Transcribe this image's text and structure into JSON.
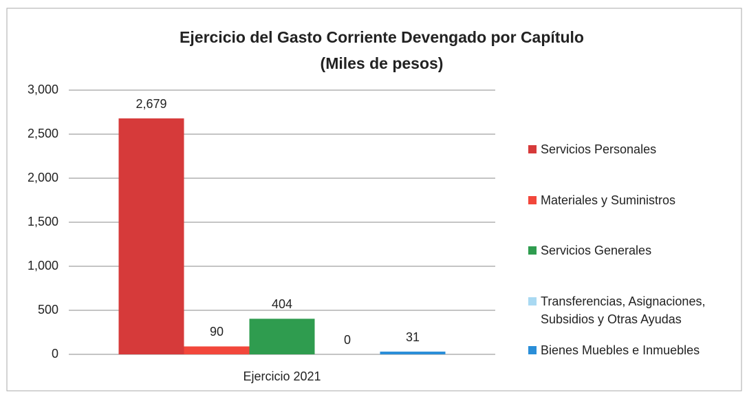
{
  "chart_data": {
    "type": "bar",
    "title": "Ejercicio del Gasto Corriente Devengado por Capítulo",
    "subtitle": "(Miles de pesos)",
    "categories": [
      "Ejercicio 2021"
    ],
    "series": [
      {
        "name": "Servicios Personales",
        "color": "#d63a3a",
        "values": [
          2679
        ],
        "value_labels": [
          "2,679"
        ]
      },
      {
        "name": "Materiales y Suministros",
        "color": "#f2473b",
        "values": [
          90
        ]
      },
      {
        "name": "Servicios Generales",
        "color": "#2f9c4f",
        "values": [
          404
        ]
      },
      {
        "name": "Transferencias, Asignaciones, Subsidios y Otras Ayudas",
        "color": "#a9d9f2",
        "values": [
          0
        ]
      },
      {
        "name": "Bienes Muebles e Inmuebles",
        "color": "#2a8ed8",
        "values": [
          31
        ]
      }
    ],
    "ylim": [
      0,
      3000
    ],
    "yticks": [
      0,
      500,
      {
        "value": 1000,
        "label": "1,000"
      },
      {
        "value": 1500,
        "label": "1,500"
      },
      {
        "value": 2000,
        "label": "2,000"
      },
      {
        "value": 2500,
        "label": "2,500"
      },
      {
        "value": 3000,
        "label": "3,000"
      }
    ],
    "grid": true,
    "legend": "right"
  }
}
